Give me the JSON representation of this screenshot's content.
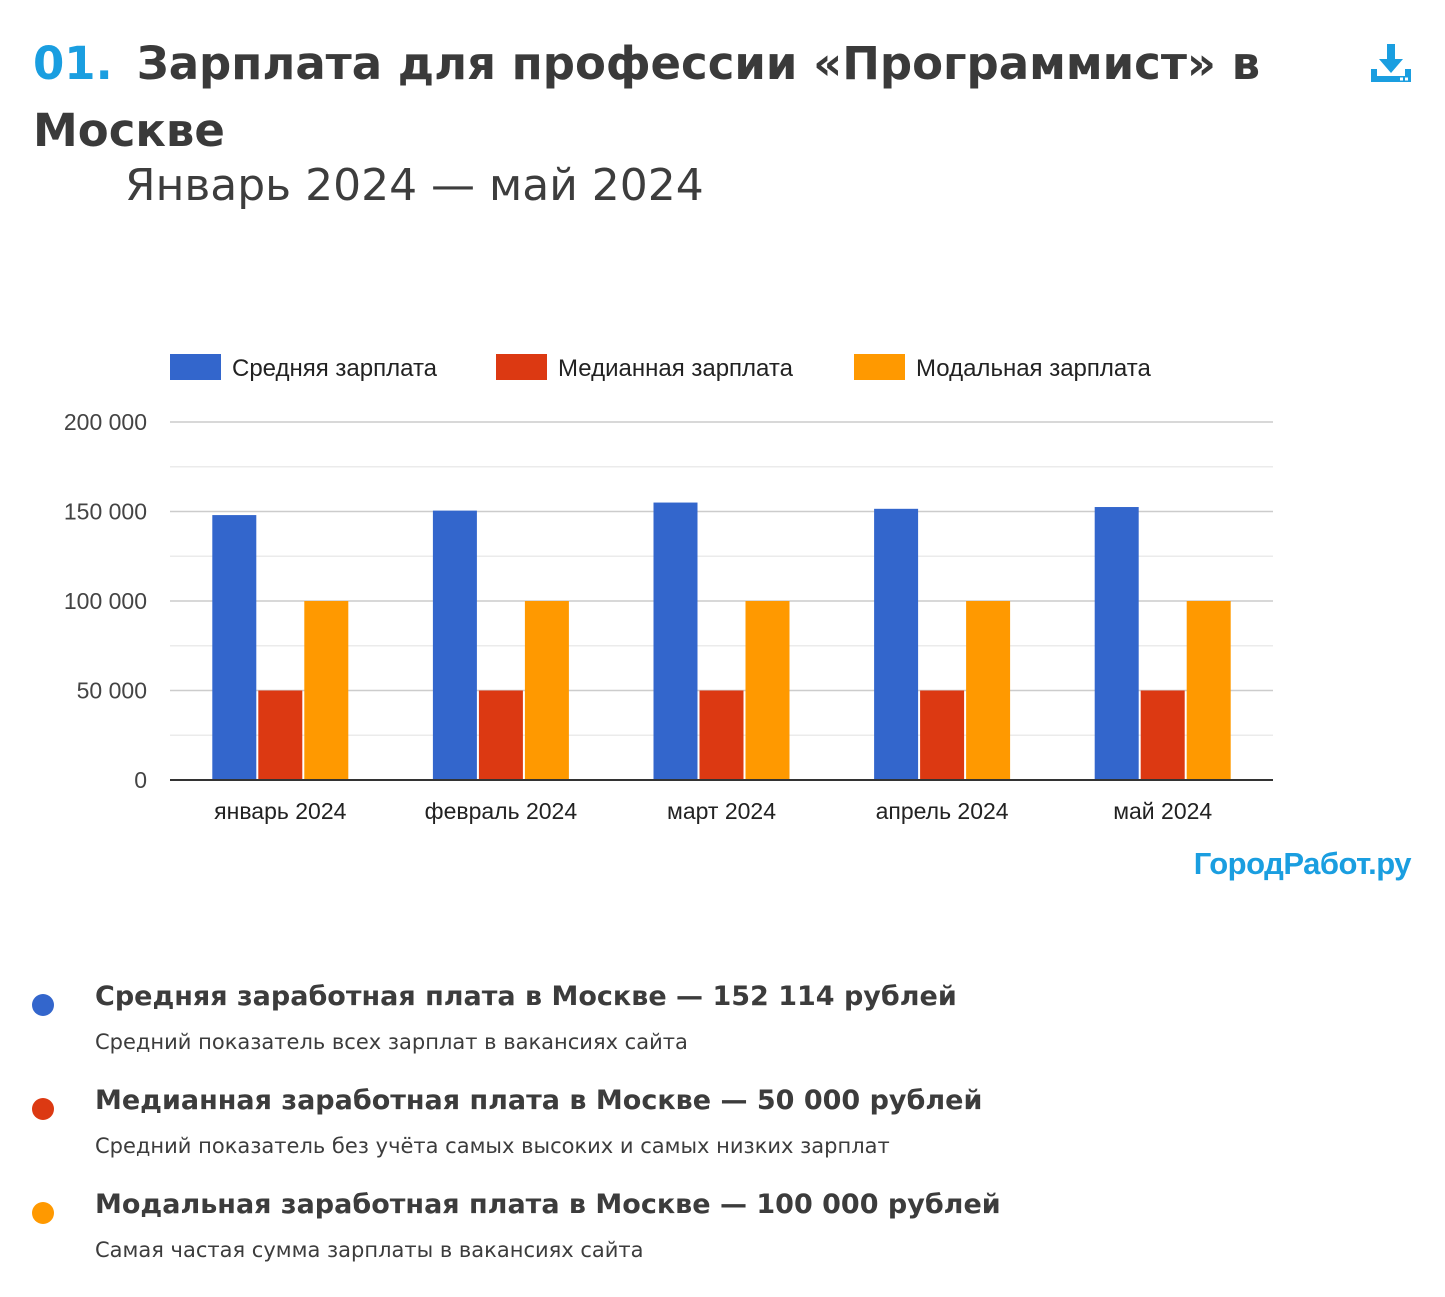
{
  "header": {
    "number": "01.",
    "title": "Зарплата для профессии «Программист» в Москве",
    "subtitle": "Январь 2024 — май 2024",
    "download_icon": "download-icon"
  },
  "brand": "ГородРабот.ру",
  "colors": {
    "accent": "#1a9ee0",
    "average": "#3366cc",
    "median": "#dc3912",
    "mode": "#ff9900"
  },
  "chart_data": {
    "type": "bar",
    "categories": [
      "январь 2024",
      "февраль 2024",
      "март 2024",
      "апрель 2024",
      "май 2024"
    ],
    "series": [
      {
        "name": "Средняя зарплата",
        "color": "#3366cc",
        "values": [
          148000,
          150500,
          155000,
          151500,
          152500
        ]
      },
      {
        "name": "Медианная зарплата",
        "color": "#dc3912",
        "values": [
          50000,
          50000,
          50000,
          50000,
          50000
        ]
      },
      {
        "name": "Модальная зарплата",
        "color": "#ff9900",
        "values": [
          100000,
          100000,
          100000,
          100000,
          100000
        ]
      }
    ],
    "ylim": [
      0,
      200000
    ],
    "yticks": [
      0,
      50000,
      100000,
      150000,
      200000
    ],
    "ytick_labels": [
      "0",
      "50 000",
      "100 000",
      "150 000",
      "200 000"
    ],
    "grid": true,
    "legend_position": "top"
  },
  "stats": [
    {
      "title": "Средняя заработная плата в Москве — 152 114 рублей",
      "description": "Средний показатель всех зарплат в вакансиях сайта",
      "color": "#3366cc"
    },
    {
      "title": "Медианная заработная плата в Москве — 50 000 рублей",
      "description": "Средний показатель без учёта самых высоких и самых низких зарплат",
      "color": "#dc3912"
    },
    {
      "title": "Модальная заработная плата в Москве — 100 000 рублей",
      "description": "Самая частая сумма зарплаты в вакансиях сайта",
      "color": "#ff9900"
    }
  ]
}
